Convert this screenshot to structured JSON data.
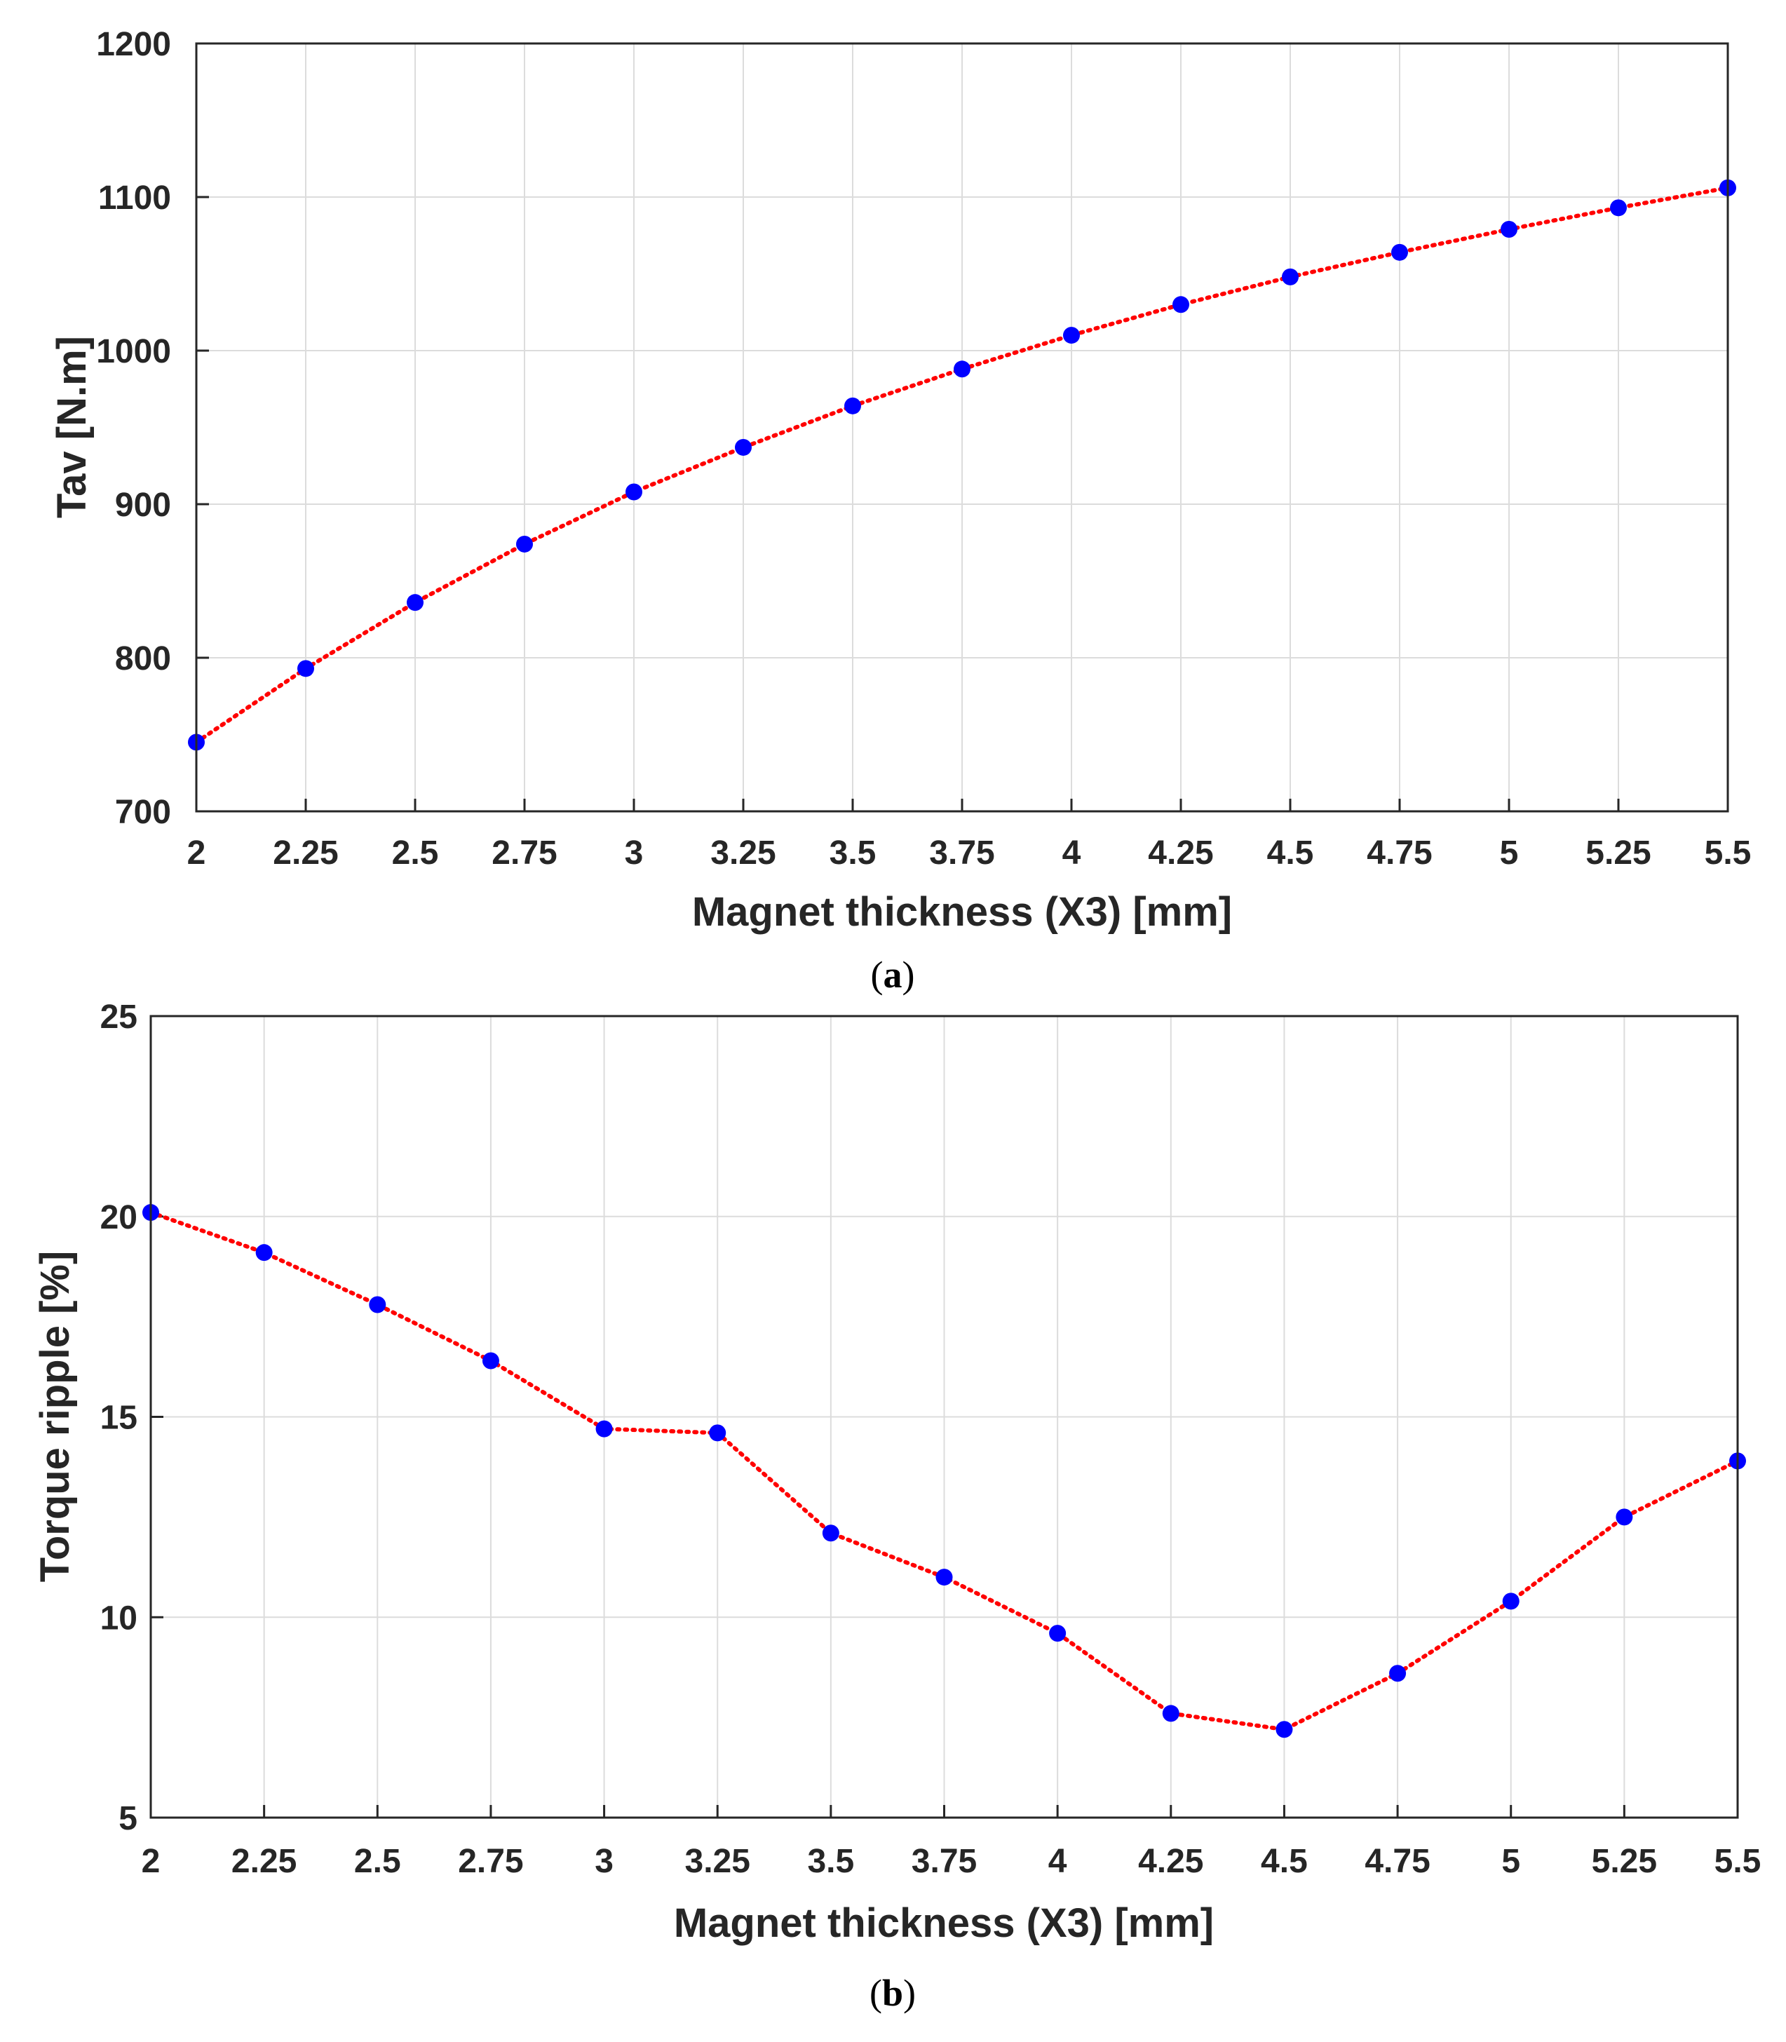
{
  "chart_data": [
    {
      "type": "line",
      "caption_open": "(",
      "caption_letter": "a",
      "caption_close": ")",
      "title": "",
      "xlabel": "Magnet thickness (X3) [mm]",
      "ylabel": "Tav [N.m]",
      "xlim": [
        2,
        5.5
      ],
      "ylim": [
        700,
        1200
      ],
      "xticks": [
        "2",
        "2.25",
        "2.5",
        "2.75",
        "3",
        "3.25",
        "3.5",
        "3.75",
        "4",
        "4.25",
        "4.5",
        "4.75",
        "5",
        "5.25",
        "5.5"
      ],
      "yticks": [
        "700",
        "800",
        "900",
        "1000",
        "1100",
        "1200"
      ],
      "grid": true,
      "series": [
        {
          "name": "Tav",
          "line_style": "dotted",
          "line_color": "#ff0000",
          "marker_color": "#0000ff",
          "x": [
            2,
            2.25,
            2.5,
            2.75,
            3,
            3.25,
            3.5,
            3.75,
            4,
            4.25,
            4.5,
            4.75,
            5,
            5.25,
            5.5
          ],
          "y": [
            745,
            793,
            836,
            874,
            908,
            937,
            964,
            988,
            1010,
            1030,
            1048,
            1064,
            1079,
            1093,
            1106
          ]
        }
      ]
    },
    {
      "type": "line",
      "caption_open": "(",
      "caption_letter": "b",
      "caption_close": ")",
      "title": "",
      "xlabel": "Magnet thickness (X3) [mm]",
      "ylabel": "Torque ripple [%]",
      "xlim": [
        2,
        5.5
      ],
      "ylim": [
        5,
        25
      ],
      "xticks": [
        "2",
        "2.25",
        "2.5",
        "2.75",
        "3",
        "3.25",
        "3.5",
        "3.75",
        "4",
        "4.25",
        "4.5",
        "4.75",
        "5",
        "5.25",
        "5.5"
      ],
      "yticks": [
        "5",
        "10",
        "15",
        "20",
        "25"
      ],
      "grid": true,
      "series": [
        {
          "name": "Torque ripple",
          "line_style": "dotted",
          "line_color": "#ff0000",
          "marker_color": "#0000ff",
          "x": [
            2,
            2.25,
            2.5,
            2.75,
            3,
            3.25,
            3.5,
            3.75,
            4,
            4.25,
            4.5,
            4.75,
            5,
            5.25,
            5.5
          ],
          "y": [
            20.1,
            19.1,
            17.8,
            16.4,
            14.7,
            14.6,
            12.1,
            11.0,
            9.6,
            7.6,
            7.2,
            8.6,
            10.4,
            12.5,
            13.9
          ]
        }
      ]
    }
  ]
}
